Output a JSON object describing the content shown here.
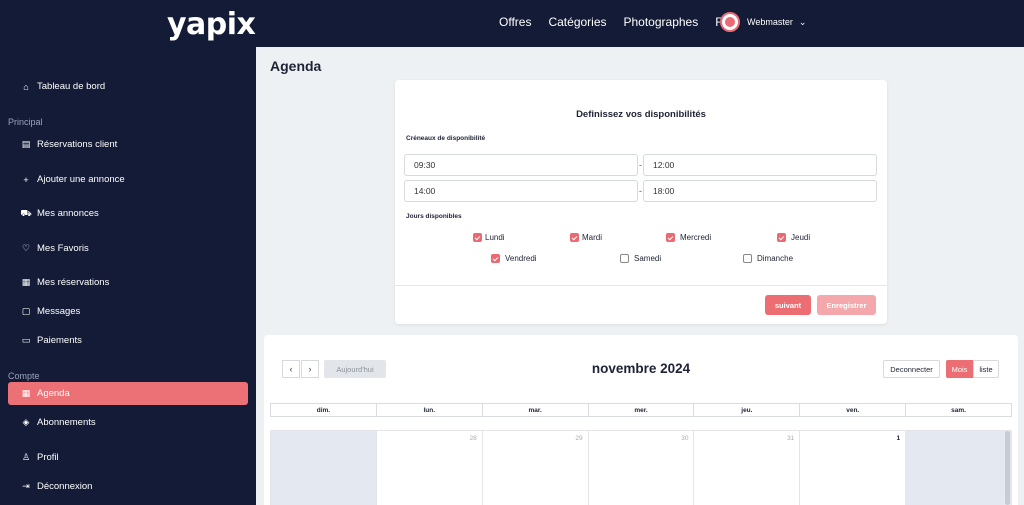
{
  "header": {
    "logo": "yapix",
    "nav": [
      "Offres",
      "Catégories",
      "Photographes",
      "FAQ"
    ],
    "user_name": "Webmaster"
  },
  "sidebar": {
    "items": [
      {
        "label": "Tableau de bord",
        "icon": "home-icon"
      },
      {
        "section": "Principal"
      },
      {
        "label": "Réservations client",
        "icon": "clipboard-icon"
      },
      {
        "label": "Ajouter une annonce",
        "icon": "plus-icon"
      },
      {
        "label": "Mes annonces",
        "icon": "cart-icon"
      },
      {
        "label": "Mes Favoris",
        "icon": "heart-icon"
      },
      {
        "label": "Mes réservations",
        "icon": "calendar-icon"
      },
      {
        "label": "Messages",
        "icon": "message-icon"
      },
      {
        "label": "Paiements",
        "icon": "card-icon"
      },
      {
        "section": "Compte"
      },
      {
        "label": "Agenda",
        "icon": "calendar-icon",
        "active": true
      },
      {
        "label": "Abonnements",
        "icon": "box-icon"
      },
      {
        "label": "Profil",
        "icon": "user-icon"
      },
      {
        "label": "Déconnexion",
        "icon": "logout-icon"
      }
    ]
  },
  "page": {
    "title": "Agenda"
  },
  "availability": {
    "title": "Definissez vos disponibilités",
    "slots_label": "Créneaux de disponibilité",
    "slots": [
      {
        "start": "09:30",
        "end": "12:00"
      },
      {
        "start": "14:00",
        "end": "18:00"
      }
    ],
    "days_label": "Jours disponibles",
    "days": [
      {
        "label": "Lundi",
        "checked": true
      },
      {
        "label": "Mardi",
        "checked": true
      },
      {
        "label": "Mercredi",
        "checked": true
      },
      {
        "label": "Jeudi",
        "checked": true
      },
      {
        "label": "Vendredi",
        "checked": true
      },
      {
        "label": "Samedi",
        "checked": false
      },
      {
        "label": "Dimanche",
        "checked": false
      }
    ],
    "next_label": "suivant",
    "save_label": "Enregistrer"
  },
  "calendar": {
    "prev_icon": "‹",
    "next_icon": "›",
    "today_label": "Aujourd'hui",
    "month_title": "novembre 2024",
    "disconnect_label": "Deconnecter",
    "view_month_label": "Mois",
    "view_list_label": "liste",
    "weekdays": [
      "dim.",
      "lun.",
      "mar.",
      "mer.",
      "jeu.",
      "ven.",
      "sam."
    ],
    "first_week": [
      "",
      "28",
      "29",
      "30",
      "31",
      "1",
      ""
    ]
  },
  "colors": {
    "navy": "#141b36",
    "accent": "#ec7176"
  }
}
